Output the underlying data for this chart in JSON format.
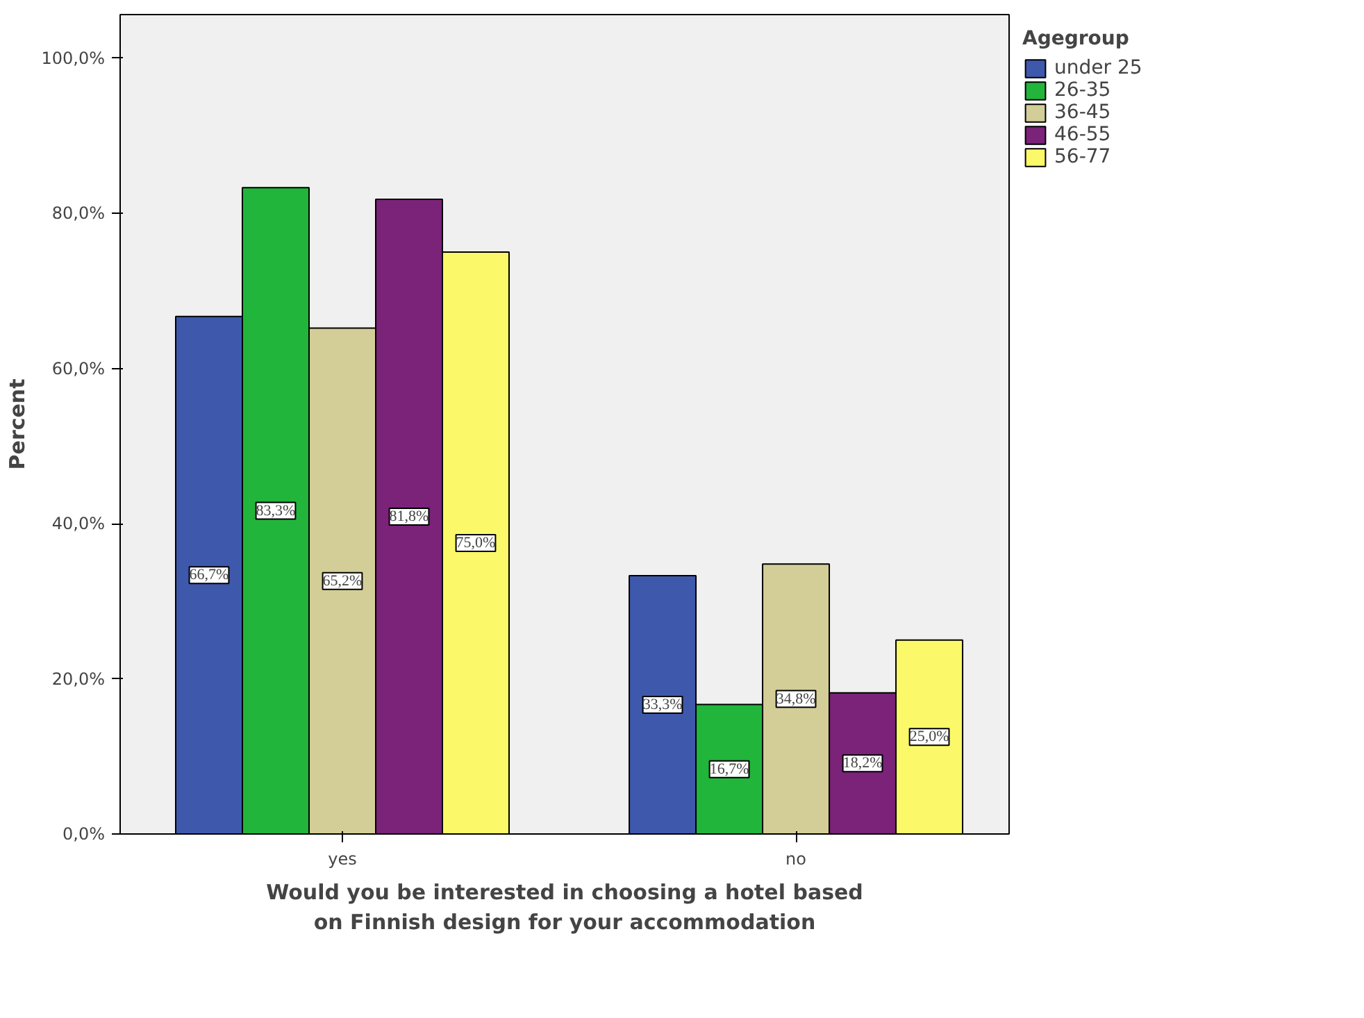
{
  "chart_data": {
    "type": "bar",
    "xlabel": "Would you be interested in choosing a hotel based\non Finnish design for your accommodation",
    "ylabel": "Percent",
    "legend_title": "Agegroup",
    "categories": [
      "yes",
      "no"
    ],
    "series": [
      {
        "name": "under 25",
        "color": "#3e58ac",
        "values": [
          66.7,
          33.3
        ],
        "value_labels": [
          "66,7%",
          "33,3%"
        ]
      },
      {
        "name": "26-35",
        "color": "#21b53b",
        "values": [
          83.3,
          16.7
        ],
        "value_labels": [
          "83,3%",
          "16,7%"
        ]
      },
      {
        "name": "36-45",
        "color": "#d3ce97",
        "values": [
          65.2,
          34.8
        ],
        "value_labels": [
          "65,2%",
          "34,8%"
        ]
      },
      {
        "name": "46-55",
        "color": "#7b2279",
        "values": [
          81.8,
          18.2
        ],
        "value_labels": [
          "81,8%",
          "18,2%"
        ]
      },
      {
        "name": "56-77",
        "color": "#fbf869",
        "values": [
          75.0,
          25.0
        ],
        "value_labels": [
          "75,0%",
          "25,0%"
        ]
      }
    ],
    "ylim": [
      0,
      105.6
    ],
    "yticks": [
      {
        "value": 0,
        "label": "0,0%"
      },
      {
        "value": 20,
        "label": "20,0%"
      },
      {
        "value": 40,
        "label": "40,0%"
      },
      {
        "value": 60,
        "label": "60,0%"
      },
      {
        "value": 80,
        "label": "80,0%"
      },
      {
        "value": 100,
        "label": "100,0%"
      }
    ],
    "grid": false,
    "legend": "top right"
  }
}
